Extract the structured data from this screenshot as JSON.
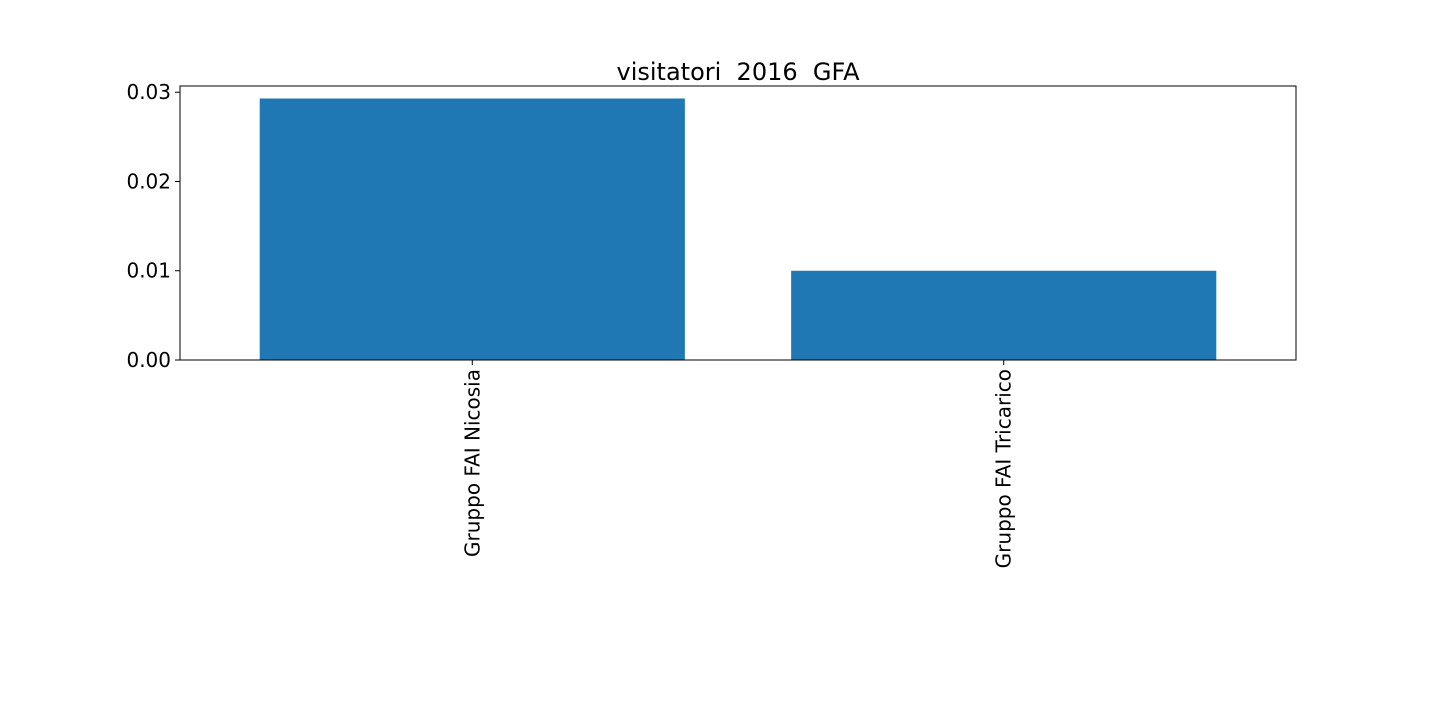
{
  "chart_data": {
    "type": "bar",
    "title": "visitatori  2016  GFA",
    "xlabel": "",
    "ylabel": "",
    "categories": [
      "Gruppo FAI Nicosia",
      "Gruppo FAI Tricarico"
    ],
    "values": [
      0.0293,
      0.01
    ],
    "ylim": [
      0,
      0.0307
    ],
    "yticks": [
      0.0,
      0.01,
      0.02,
      0.03
    ],
    "ytick_labels": [
      "0.00",
      "0.01",
      "0.02",
      "0.03"
    ],
    "bar_color": "#1f77b4",
    "grid": false,
    "legend": "none"
  }
}
